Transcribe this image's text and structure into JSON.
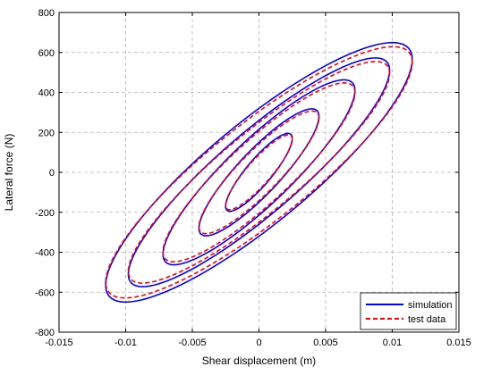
{
  "chart_data": {
    "type": "line",
    "xlabel": "Shear displacement (m)",
    "ylabel": "Lateral force (N)",
    "xlim": [
      -0.015,
      0.015
    ],
    "ylim": [
      -800,
      800
    ],
    "xticks": [
      -0.015,
      -0.01,
      -0.005,
      0,
      0.005,
      0.01,
      0.015
    ],
    "xtick_labels": [
      "-0.015",
      "-0.01",
      "-0.005",
      "0",
      "0.005",
      "0.01",
      "0.015"
    ],
    "yticks": [
      -800,
      -600,
      -400,
      -200,
      0,
      200,
      400,
      600,
      800
    ],
    "ytick_labels": [
      "-800",
      "-600",
      "-400",
      "-200",
      "0",
      "200",
      "400",
      "600",
      "800"
    ],
    "grid": true,
    "legend_position": "bottom-right",
    "series": [
      {
        "name": "simulation",
        "color": "#0000ff",
        "style": "solid",
        "loops": [
          {
            "x_max": 0.0025,
            "y_max": 170,
            "y0": 95
          },
          {
            "x_max": 0.0045,
            "y_max": 280,
            "y0": 150
          },
          {
            "x_max": 0.0072,
            "y_max": 410,
            "y0": 215
          },
          {
            "x_max": 0.0098,
            "y_max": 510,
            "y0": 260
          },
          {
            "x_max": 0.0115,
            "y_max": 565,
            "y0": 320
          }
        ]
      },
      {
        "name": "test data",
        "color": "#ff0000",
        "style": "dashed",
        "loops": [
          {
            "x_max": 0.0025,
            "y_max": 165,
            "y0": 88
          },
          {
            "x_max": 0.0045,
            "y_max": 272,
            "y0": 142
          },
          {
            "x_max": 0.0072,
            "y_max": 398,
            "y0": 205
          },
          {
            "x_max": 0.0098,
            "y_max": 495,
            "y0": 250
          },
          {
            "x_max": 0.0115,
            "y_max": 550,
            "y0": 305
          }
        ]
      }
    ]
  }
}
